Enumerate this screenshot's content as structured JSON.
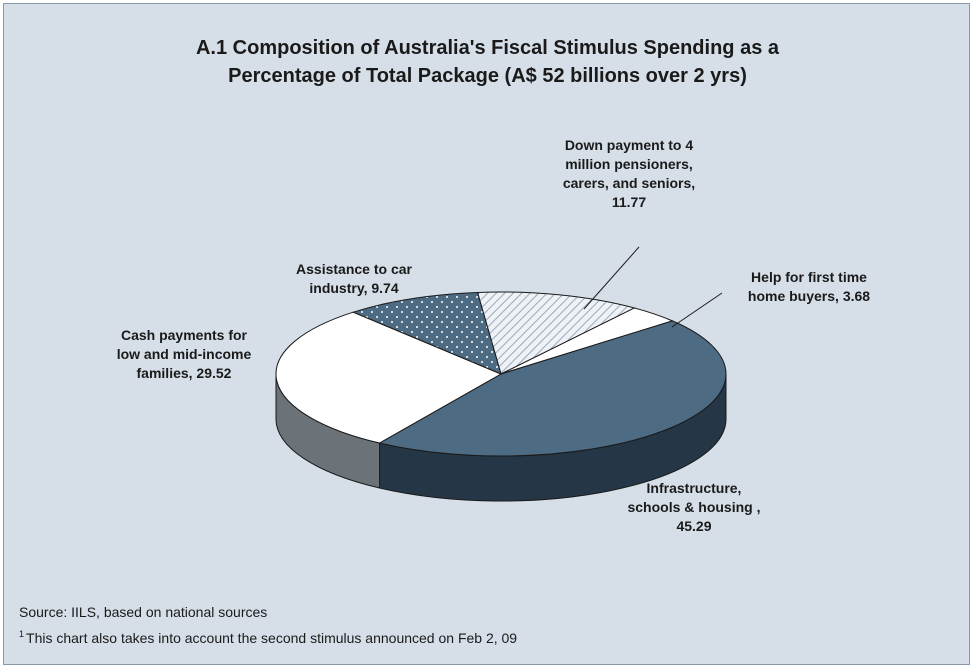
{
  "chart_data": {
    "type": "pie",
    "title_lines": [
      "A.1 Composition of Australia's Fiscal Stimulus Spending as a",
      "Percentage of Total Package (A$ 52 billions over 2 yrs)"
    ],
    "slices": [
      {
        "label_lines": [
          "Down payment to 4",
          "million pensioners,",
          "carers, and seniors,",
          "11.77"
        ],
        "value": 11.77,
        "color": "#e9eef3",
        "pattern": "hatch"
      },
      {
        "label_lines": [
          "Help for first time",
          "home buyers, 3.68"
        ],
        "value": 3.68,
        "color": "#ffffff",
        "pattern": "none"
      },
      {
        "label_lines": [
          "Infrastructure,",
          "schools & housing ,",
          "45.29"
        ],
        "value": 45.29,
        "color": "#4d6b82",
        "pattern": "none"
      },
      {
        "label_lines": [
          "Cash payments for",
          "low and mid-income",
          "families, 29.52"
        ],
        "value": 29.52,
        "color": "#ffffff",
        "pattern": "none"
      },
      {
        "label_lines": [
          "Assistance to car",
          "industry, 9.74"
        ],
        "value": 9.74,
        "color": "#4d6b82",
        "pattern": "dots"
      }
    ],
    "legend": "none"
  },
  "footnotes": {
    "source": "Source: IILS, based on national sources",
    "note_marker": "1",
    "note_text": "This chart also takes into account the second stimulus announced on Feb 2, 09"
  }
}
